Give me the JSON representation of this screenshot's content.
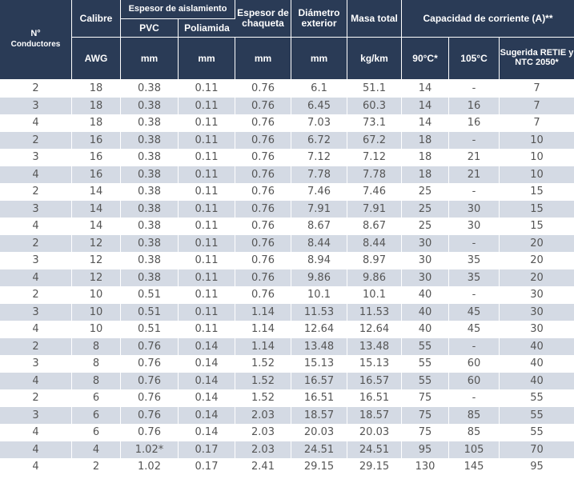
{
  "header": {
    "conductores": "N° Conductores",
    "conductores_top": "N°",
    "conductores_bottom": "Conductores",
    "calibre": "Calibre",
    "espesor_aislamiento": "Espesor de aislamiento",
    "pvc": "PVC",
    "poliamida": "Poliamida",
    "espesor_chaqueta": "Espesor de chaqueta",
    "diametro_exterior": "Diámetro exterior",
    "masa_total": "Masa total",
    "capacidad_corriente": "Capacidad de corriente (A)**",
    "units": {
      "awg": "AWG",
      "pvc_mm": "mm",
      "poliamida_mm": "mm",
      "chaqueta_mm": "mm",
      "diametro_mm": "mm",
      "masa_kg": "kg/km",
      "t90": "90°C*",
      "t105": "105°C",
      "sugerida": "Sugerida RETIE y NTC 2050*"
    }
  },
  "rows": [
    {
      "n": "2",
      "awg": "18",
      "pvc": "0.38",
      "pol": "0.11",
      "chq": "0.76",
      "diam": "6.1",
      "masa": "51.1",
      "a90": "14",
      "a105": "-",
      "sug": "7"
    },
    {
      "n": "3",
      "awg": "18",
      "pvc": "0.38",
      "pol": "0.11",
      "chq": "0.76",
      "diam": "6.45",
      "masa": "60.3",
      "a90": "14",
      "a105": "16",
      "sug": "7"
    },
    {
      "n": "4",
      "awg": "18",
      "pvc": "0.38",
      "pol": "0.11",
      "chq": "0.76",
      "diam": "7.03",
      "masa": "73.1",
      "a90": "14",
      "a105": "16",
      "sug": "7"
    },
    {
      "n": "2",
      "awg": "16",
      "pvc": "0.38",
      "pol": "0.11",
      "chq": "0.76",
      "diam": "6.72",
      "masa": "67.2",
      "a90": "18",
      "a105": "-",
      "sug": "10"
    },
    {
      "n": "3",
      "awg": "16",
      "pvc": "0.38",
      "pol": "0.11",
      "chq": "0.76",
      "diam": "7.12",
      "masa": "7.12",
      "a90": "18",
      "a105": "21",
      "sug": "10"
    },
    {
      "n": "4",
      "awg": "16",
      "pvc": "0.38",
      "pol": "0.11",
      "chq": "0.76",
      "diam": "7.78",
      "masa": "7.78",
      "a90": "18",
      "a105": "21",
      "sug": "10"
    },
    {
      "n": "2",
      "awg": "14",
      "pvc": "0.38",
      "pol": "0.11",
      "chq": "0.76",
      "diam": "7.46",
      "masa": "7.46",
      "a90": "25",
      "a105": "-",
      "sug": "15"
    },
    {
      "n": "3",
      "awg": "14",
      "pvc": "0.38",
      "pol": "0.11",
      "chq": "0.76",
      "diam": "7.91",
      "masa": "7.91",
      "a90": "25",
      "a105": "30",
      "sug": "15"
    },
    {
      "n": "4",
      "awg": "14",
      "pvc": "0.38",
      "pol": "0.11",
      "chq": "0.76",
      "diam": "8.67",
      "masa": "8.67",
      "a90": "25",
      "a105": "30",
      "sug": "15"
    },
    {
      "n": "2",
      "awg": "12",
      "pvc": "0.38",
      "pol": "0.11",
      "chq": "0.76",
      "diam": "8.44",
      "masa": "8.44",
      "a90": "30",
      "a105": "-",
      "sug": "20"
    },
    {
      "n": "3",
      "awg": "12",
      "pvc": "0.38",
      "pol": "0.11",
      "chq": "0.76",
      "diam": "8.94",
      "masa": "8.97",
      "a90": "30",
      "a105": "35",
      "sug": "20"
    },
    {
      "n": "4",
      "awg": "12",
      "pvc": "0.38",
      "pol": "0.11",
      "chq": "0.76",
      "diam": "9.86",
      "masa": "9.86",
      "a90": "30",
      "a105": "35",
      "sug": "20"
    },
    {
      "n": "2",
      "awg": "10",
      "pvc": "0.51",
      "pol": "0.11",
      "chq": "0.76",
      "diam": "10.1",
      "masa": "10.1",
      "a90": "40",
      "a105": "-",
      "sug": "30"
    },
    {
      "n": "3",
      "awg": "10",
      "pvc": "0.51",
      "pol": "0.11",
      "chq": "1.14",
      "diam": "11.53",
      "masa": "11.53",
      "a90": "40",
      "a105": "45",
      "sug": "30"
    },
    {
      "n": "4",
      "awg": "10",
      "pvc": "0.51",
      "pol": "0.11",
      "chq": "1.14",
      "diam": "12.64",
      "masa": "12.64",
      "a90": "40",
      "a105": "45",
      "sug": "30"
    },
    {
      "n": "2",
      "awg": "8",
      "pvc": "0.76",
      "pol": "0.14",
      "chq": "1.14",
      "diam": "13.48",
      "masa": "13.48",
      "a90": "55",
      "a105": "-",
      "sug": "40"
    },
    {
      "n": "3",
      "awg": "8",
      "pvc": "0.76",
      "pol": "0.14",
      "chq": "1.52",
      "diam": "15.13",
      "masa": "15.13",
      "a90": "55",
      "a105": "60",
      "sug": "40"
    },
    {
      "n": "4",
      "awg": "8",
      "pvc": "0.76",
      "pol": "0.14",
      "chq": "1.52",
      "diam": "16.57",
      "masa": "16.57",
      "a90": "55",
      "a105": "60",
      "sug": "40"
    },
    {
      "n": "2",
      "awg": "6",
      "pvc": "0.76",
      "pol": "0.14",
      "chq": "1.52",
      "diam": "16.51",
      "masa": "16.51",
      "a90": "75",
      "a105": "-",
      "sug": "55"
    },
    {
      "n": "3",
      "awg": "6",
      "pvc": "0.76",
      "pol": "0.14",
      "chq": "2.03",
      "diam": "18.57",
      "masa": "18.57",
      "a90": "75",
      "a105": "85",
      "sug": "55"
    },
    {
      "n": "4",
      "awg": "6",
      "pvc": "0.76",
      "pol": "0.14",
      "chq": "2.03",
      "diam": "20.03",
      "masa": "20.03",
      "a90": "75",
      "a105": "85",
      "sug": "55"
    },
    {
      "n": "4",
      "awg": "4",
      "pvc": "1.02*",
      "pol": "0.17",
      "chq": "2.03",
      "diam": "24.51",
      "masa": "24.51",
      "a90": "95",
      "a105": "105",
      "sug": "70"
    },
    {
      "n": "4",
      "awg": "2",
      "pvc": "1.02",
      "pol": "0.17",
      "chq": "2.41",
      "diam": "29.15",
      "masa": "29.15",
      "a90": "130",
      "a105": "145",
      "sug": "95"
    }
  ],
  "colors": {
    "header_bg": "#2a3b56",
    "header_text": "#ffffff",
    "row_alt_bg": "#d4dae4",
    "cell_text": "#555555"
  }
}
